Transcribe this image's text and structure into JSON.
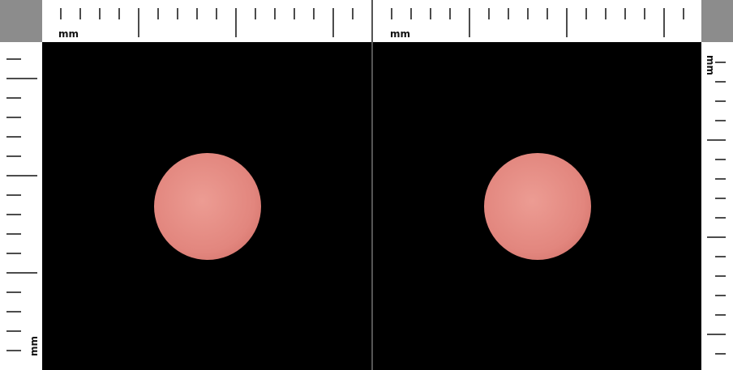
{
  "top_ruler": {
    "left_label": "mm",
    "right_label": "mm"
  },
  "side_rulers": {
    "left_label": "mm",
    "right_label": "mm"
  }
}
